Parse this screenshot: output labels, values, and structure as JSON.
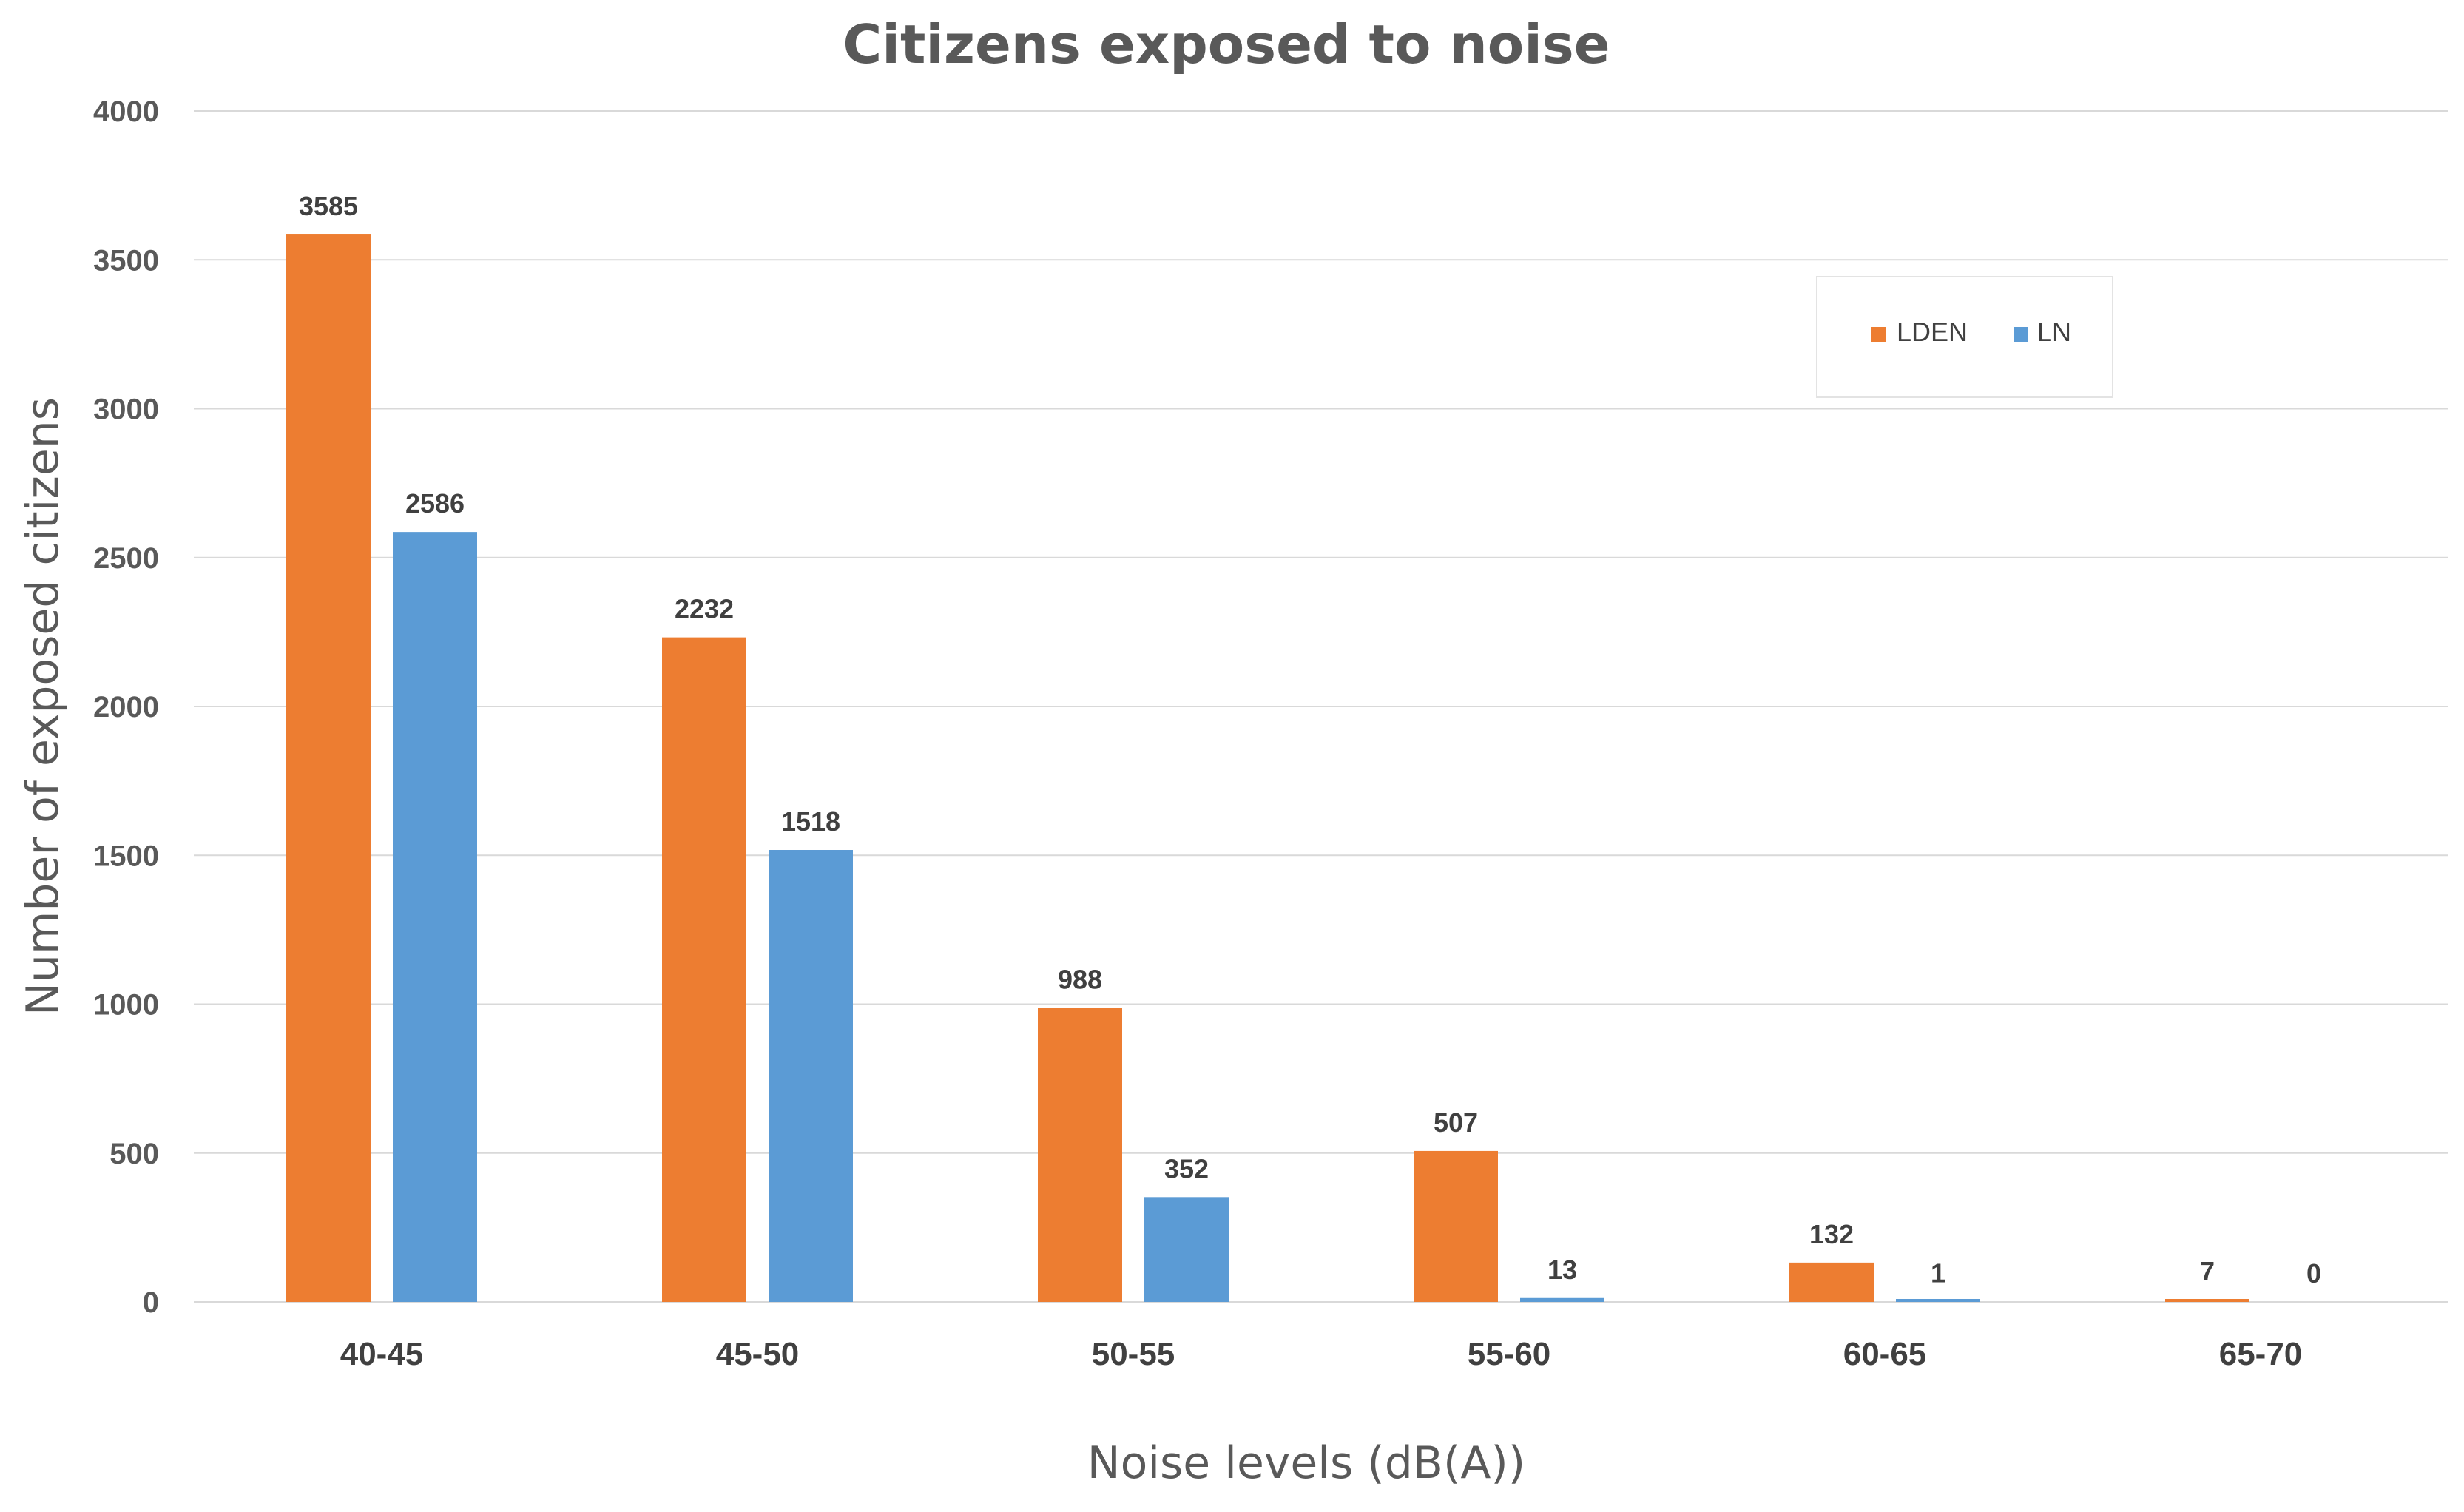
{
  "chart_data": {
    "type": "bar",
    "title": "Citizens exposed to noise",
    "xlabel": "Noise levels (dB(A))",
    "ylabel": "Number of exposed citizens",
    "categories": [
      "40-45",
      "45-50",
      "50-55",
      "55-60",
      "60-65",
      "65-70"
    ],
    "series": [
      {
        "name": "LDEN",
        "color": "#ED7D31",
        "values": [
          3585,
          2232,
          988,
          507,
          132,
          7
        ]
      },
      {
        "name": "LN",
        "color": "#5B9BD5",
        "values": [
          2586,
          1518,
          352,
          13,
          1,
          0
        ]
      }
    ],
    "ylim": [
      0,
      4000
    ],
    "yticks": [
      0,
      500,
      1000,
      1500,
      2000,
      2500,
      3000,
      3500,
      4000
    ],
    "grid": true,
    "legend_position": "top-right"
  }
}
